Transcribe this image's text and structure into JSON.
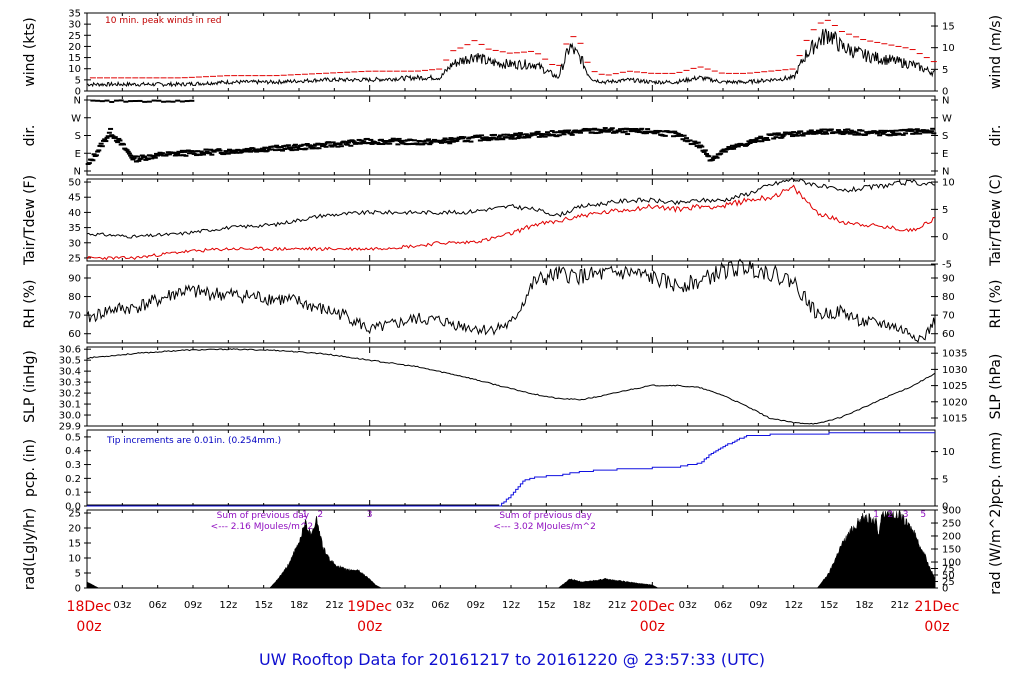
{
  "title": "UW Rooftop Data for 20161217  to  20161220 @ 23:57:33  (UTC)",
  "colors": {
    "black": "#000000",
    "red": "#e00000",
    "blue": "#1010e0",
    "purple": "#9010c0",
    "title": "#1010d0"
  },
  "time_axis": {
    "hours_total": 72,
    "hour_tick_labels": [
      "03z",
      "06z",
      "09z",
      "12z",
      "15z",
      "18z",
      "21z",
      "03z",
      "06z",
      "09z",
      "12z",
      "15z",
      "18z",
      "21z",
      "03z",
      "06z",
      "09z",
      "12z",
      "15z",
      "18z",
      "21z"
    ],
    "hour_tick_positions_h": [
      3,
      6,
      9,
      12,
      15,
      18,
      21,
      27,
      30,
      33,
      36,
      39,
      42,
      45,
      51,
      54,
      57,
      60,
      63,
      66,
      69
    ],
    "day_labels": [
      {
        "text": "18Dec",
        "sub": "00z",
        "hour": 0
      },
      {
        "text": "19Dec",
        "sub": "00z",
        "hour": 24
      },
      {
        "text": "20Dec",
        "sub": "00z",
        "hour": 48
      },
      {
        "text": "21Dec",
        "sub": "00z",
        "hour": 72
      }
    ]
  },
  "panels": {
    "wind": {
      "left_title": "wind (kts)",
      "right_title": "wind (m/s)",
      "left_ticks": [
        "0",
        "5",
        "10",
        "15",
        "20",
        "25",
        "30",
        "35"
      ],
      "right_ticks": [
        "0",
        "5",
        "10",
        "15"
      ],
      "annotation": "10 min. peak winds in red"
    },
    "dir": {
      "left_title": "dir.",
      "right_title": "dir.",
      "left_ticks": [
        "N",
        "E",
        "S",
        "W",
        "N"
      ],
      "right_ticks": [
        "N",
        "E",
        "S",
        "W",
        "N"
      ]
    },
    "temp": {
      "left_title": "Tair/Tdew (F)",
      "right_title": "Tair/Tdew (C)",
      "left_ticks": [
        "25",
        "30",
        "35",
        "40",
        "45",
        "50"
      ],
      "right_ticks": [
        "-5",
        "0",
        "5",
        "10"
      ]
    },
    "rh": {
      "left_title": "RH (%)",
      "right_title": "RH (%)",
      "left_ticks": [
        "60",
        "70",
        "80",
        "90"
      ],
      "right_ticks": [
        "60",
        "70",
        "80",
        "90"
      ]
    },
    "slp": {
      "left_title": "SLP (inHg)",
      "right_title": "SLP (hPa)",
      "left_ticks": [
        "29.9",
        "30.0",
        "30.1",
        "30.2",
        "30.3",
        "30.4",
        "30.5",
        "30.6"
      ],
      "right_ticks": [
        "1015",
        "1020",
        "1025",
        "1030",
        "1035"
      ]
    },
    "pcp": {
      "left_title": "pcp. (in)",
      "right_title": "pcp. (mm)",
      "left_ticks": [
        "0.0",
        "0.1",
        "0.2",
        "0.3",
        "0.4",
        "0.5"
      ],
      "right_ticks": [
        "0",
        "5",
        "10"
      ],
      "annotation": "Tip increments are 0.01in. (0.254mm.)"
    },
    "rad": {
      "left_title": "rad(Lgly/hr)",
      "right_title": "rad (W/m^2)",
      "left_ticks": [
        "0",
        "5",
        "10",
        "15",
        "20",
        "25"
      ],
      "right_ticks": [
        "0",
        "25",
        "50",
        "75",
        "100",
        "150",
        "200",
        "250",
        "300"
      ],
      "annotations": [
        {
          "line1": "Sum of previous day",
          "line2": "<--- 2.16 MJoules/m^2",
          "hour": 10.5
        },
        {
          "line1": "Sum of previous day",
          "line2": "<--- 3.02 MJoules/m^2",
          "hour": 34.5
        }
      ],
      "markers": [
        {
          "text": "1",
          "hour": 18.5
        },
        {
          "text": "2",
          "hour": 19.8
        },
        {
          "text": "3",
          "hour": 24.0
        },
        {
          "text": "1",
          "hour": 67.0
        },
        {
          "text": "2",
          "hour": 68.2
        },
        {
          "text": "3",
          "hour": 69.5
        },
        {
          "text": "5",
          "hour": 71.0
        }
      ]
    }
  },
  "chart_data": [
    {
      "type": "line",
      "title": "",
      "ylabel": "wind (kts)",
      "y2label": "wind (m/s)",
      "ylim": [
        0,
        35
      ],
      "x": [
        0,
        4,
        8,
        12,
        16,
        20,
        24,
        28,
        30,
        31,
        32,
        33,
        34,
        36,
        38,
        40,
        41,
        42,
        42.5,
        43,
        44,
        46,
        48,
        50,
        52,
        54,
        56,
        58,
        60,
        61,
        62,
        63,
        64,
        66,
        68,
        70,
        72
      ],
      "series": [
        {
          "name": "wind",
          "values": [
            3,
            3,
            3,
            4,
            4,
            5,
            5,
            6,
            6,
            12,
            14,
            16,
            13,
            12,
            12,
            6,
            20,
            14,
            8,
            5,
            4,
            5,
            4,
            4,
            6,
            4,
            4,
            5,
            6,
            16,
            22,
            26,
            20,
            16,
            14,
            12,
            8
          ]
        },
        {
          "name": "10 min. peak winds in red",
          "values": [
            5,
            5,
            5,
            6,
            6,
            7,
            8,
            8,
            9,
            17,
            19,
            22,
            18,
            16,
            17,
            9,
            25,
            20,
            12,
            8,
            6,
            8,
            7,
            7,
            10,
            7,
            7,
            8,
            9,
            21,
            29,
            31,
            26,
            22,
            20,
            18,
            12
          ]
        }
      ]
    },
    {
      "type": "scatter",
      "title": "",
      "ylabel": "dir.",
      "y2label": "dir.",
      "y_categories": [
        "N",
        "E",
        "S",
        "W",
        "N"
      ],
      "x": [
        0,
        2,
        4,
        6,
        8,
        10,
        12,
        14,
        16,
        18,
        20,
        22,
        24,
        26,
        28,
        30,
        32,
        34,
        36,
        38,
        40,
        42,
        44,
        46,
        48,
        50,
        52,
        53,
        54,
        56,
        58,
        60,
        62,
        64,
        66,
        68,
        70,
        72
      ],
      "values_deg": [
        20,
        200,
        60,
        80,
        90,
        95,
        100,
        110,
        115,
        120,
        130,
        140,
        150,
        150,
        145,
        150,
        160,
        170,
        175,
        185,
        190,
        200,
        205,
        200,
        200,
        185,
        130,
        60,
        100,
        140,
        175,
        190,
        195,
        200,
        195,
        190,
        200,
        200
      ]
    },
    {
      "type": "line",
      "title": "",
      "ylabel": "Tair/Tdew (F)",
      "y2label": "Tair/Tdew (C)",
      "ylim": [
        24,
        51
      ],
      "x": [
        0,
        4,
        8,
        12,
        16,
        20,
        24,
        28,
        30,
        32,
        34,
        36,
        38,
        40,
        42,
        44,
        46,
        48,
        50,
        52,
        54,
        56,
        58,
        60,
        62,
        64,
        66,
        68,
        70,
        72
      ],
      "series": [
        {
          "name": "Tair",
          "values": [
            33,
            32,
            33,
            35,
            36,
            39,
            40,
            40,
            40,
            40,
            41,
            42,
            41,
            39,
            42,
            43,
            44,
            44,
            43,
            44,
            44,
            46,
            49,
            51,
            49,
            47,
            48,
            49,
            50,
            49
          ]
        },
        {
          "name": "Tdew",
          "values": [
            25,
            25,
            27,
            28,
            28,
            28,
            28,
            29,
            30,
            30,
            31,
            33,
            36,
            37,
            39,
            40,
            41,
            42,
            41,
            42,
            42,
            44,
            45,
            48,
            40,
            37,
            36,
            35,
            34,
            38
          ]
        }
      ]
    },
    {
      "type": "line",
      "title": "",
      "ylabel": "RH (%)",
      "y2label": "RH (%)",
      "ylim": [
        55,
        97
      ],
      "x": [
        0,
        2,
        4,
        6,
        8,
        10,
        12,
        14,
        16,
        18,
        20,
        22,
        24,
        26,
        28,
        30,
        32,
        34,
        36,
        38,
        40,
        42,
        44,
        46,
        48,
        50,
        52,
        54,
        56,
        58,
        60,
        62,
        64,
        66,
        68,
        70,
        71,
        72
      ],
      "values": [
        68,
        73,
        74,
        78,
        83,
        82,
        81,
        80,
        79,
        77,
        73,
        70,
        62,
        65,
        68,
        67,
        64,
        62,
        65,
        88,
        92,
        91,
        92,
        93,
        90,
        86,
        88,
        94,
        96,
        93,
        88,
        70,
        72,
        66,
        65,
        60,
        57,
        67
      ]
    },
    {
      "type": "line",
      "title": "",
      "ylabel": "SLP (inHg)",
      "y2label": "SLP (hPa)",
      "ylim": [
        29.9,
        30.62
      ],
      "x": [
        0,
        4,
        8,
        12,
        16,
        20,
        24,
        28,
        32,
        36,
        38,
        40,
        42,
        44,
        46,
        48,
        50,
        52,
        54,
        56,
        58,
        60,
        62,
        64,
        66,
        68,
        70,
        72
      ],
      "values": [
        30.52,
        30.56,
        30.59,
        30.6,
        30.59,
        30.56,
        30.5,
        30.44,
        30.35,
        30.24,
        30.19,
        30.15,
        30.14,
        30.18,
        30.23,
        30.27,
        30.27,
        30.25,
        30.18,
        30.08,
        29.97,
        29.93,
        29.92,
        29.98,
        30.07,
        30.17,
        30.26,
        30.38
      ]
    },
    {
      "type": "line",
      "title": "",
      "ylabel": "pcp. (in)",
      "y2label": "pcp. (mm)",
      "ylim": [
        0,
        0.55
      ],
      "x": [
        0,
        30,
        35,
        36,
        37,
        38,
        40,
        42,
        46,
        50,
        52,
        53,
        54,
        55,
        56,
        60,
        66,
        72
      ],
      "values": [
        0,
        0,
        0,
        0.08,
        0.18,
        0.21,
        0.22,
        0.25,
        0.27,
        0.28,
        0.31,
        0.38,
        0.43,
        0.47,
        0.51,
        0.52,
        0.53,
        0.53
      ]
    },
    {
      "type": "area",
      "title": "",
      "ylabel": "rad(Lgly/hr)",
      "y2label": "rad (W/m^2)",
      "ylim": [
        0,
        26
      ],
      "x": [
        0,
        0.5,
        1,
        15.5,
        16,
        17,
        18,
        18.5,
        19,
        19.5,
        20,
        20.5,
        21,
        22,
        23,
        24,
        24.5,
        25,
        40,
        41,
        42,
        44,
        46,
        48,
        48.5,
        49,
        62,
        63,
        64,
        65,
        66,
        67,
        67.2,
        67.5,
        68,
        69,
        70,
        71,
        72
      ],
      "values": [
        2,
        1,
        0,
        0,
        2,
        7,
        15,
        22,
        18,
        23,
        14,
        10,
        8,
        6,
        6,
        3,
        1,
        0,
        0,
        3,
        2,
        3,
        2,
        1,
        0,
        0,
        0,
        5,
        14,
        20,
        24,
        22,
        18,
        25,
        25,
        24,
        20,
        12,
        3
      ]
    }
  ]
}
